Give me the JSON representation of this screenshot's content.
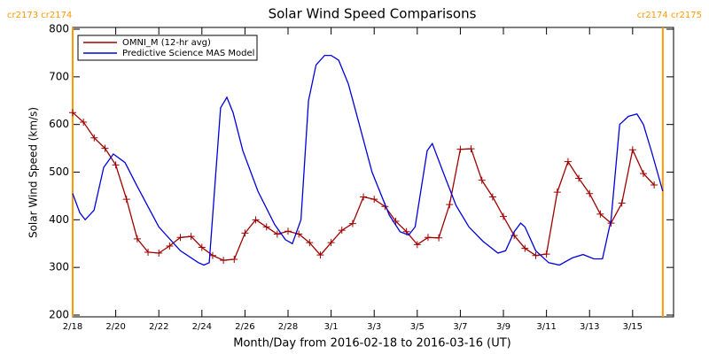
{
  "chart_data": {
    "type": "line",
    "title": "Solar Wind Speed Comparisons",
    "xlabel": "Month/Day from 2016-02-18 to 2016-03-16 (UT)",
    "ylabel": "Solar Wind Speed (km/s)",
    "xlim": [
      0,
      27.9
    ],
    "ylim": [
      200,
      800
    ],
    "yticks": [
      200,
      300,
      400,
      500,
      600,
      700,
      800
    ],
    "xticks": [
      {
        "value": 0,
        "label": "2/18"
      },
      {
        "value": 2,
        "label": "2/20"
      },
      {
        "value": 4,
        "label": "2/22"
      },
      {
        "value": 6,
        "label": "2/24"
      },
      {
        "value": 8,
        "label": "2/26"
      },
      {
        "value": 10,
        "label": "2/28"
      },
      {
        "value": 12,
        "label": "3/1"
      },
      {
        "value": 14,
        "label": "3/3"
      },
      {
        "value": 16,
        "label": "3/5"
      },
      {
        "value": 18,
        "label": "3/7"
      },
      {
        "value": 20,
        "label": "3/9"
      },
      {
        "value": 22,
        "label": "3/11"
      },
      {
        "value": 24,
        "label": "3/13"
      },
      {
        "value": 26,
        "label": "3/15"
      }
    ],
    "legend": "upper left",
    "markers": [
      {
        "x": 0,
        "label": "cr2173 cr2174",
        "color": "#ff9900"
      },
      {
        "x": 27.4,
        "label": "cr2174 cr2175",
        "color": "#ff9900"
      }
    ],
    "series": [
      {
        "name": "OMNI_M (12-hr avg)",
        "color": "#a00000",
        "marker": "+",
        "x": [
          0,
          0.5,
          1,
          1.5,
          2,
          2.5,
          3,
          3.5,
          4,
          4.5,
          5,
          5.5,
          6,
          6.5,
          7,
          7.5,
          8,
          8.5,
          9,
          9.5,
          10,
          10.5,
          11,
          11.5,
          12,
          12.5,
          13,
          13.5,
          14,
          14.5,
          15,
          15.5,
          16,
          16.5,
          17,
          17.5,
          18,
          18.5,
          19,
          19.5,
          20,
          20.5,
          21,
          21.5,
          22,
          22.5,
          23,
          23.5,
          24,
          24.5,
          25,
          25.5,
          26,
          26.5,
          27
        ],
        "values": [
          625,
          605,
          572,
          550,
          515,
          443,
          360,
          332,
          330,
          345,
          363,
          365,
          342,
          325,
          315,
          317,
          372,
          400,
          385,
          370,
          376,
          370,
          352,
          326,
          352,
          378,
          392,
          448,
          443,
          428,
          397,
          375,
          348,
          363,
          362,
          432,
          548,
          549,
          483,
          448,
          407,
          367,
          340,
          325,
          328,
          458,
          522,
          487,
          455,
          412,
          393,
          435,
          547,
          497,
          473
        ]
      },
      {
        "name": "Predictive Science MAS Model",
        "color": "#0000dd",
        "x": [
          0,
          0.33,
          0.58,
          0.99,
          1.44,
          1.89,
          2.43,
          3.0,
          4.0,
          5.0,
          5.84,
          6.09,
          6.34,
          6.87,
          7.16,
          7.45,
          7.9,
          8.6,
          9.38,
          9.88,
          10.2,
          10.6,
          10.95,
          11.3,
          11.7,
          12.0,
          12.35,
          12.8,
          13.25,
          13.9,
          14.7,
          15.2,
          15.6,
          15.9,
          16.46,
          16.7,
          17.2,
          17.8,
          18.4,
          19.05,
          19.75,
          20.1,
          20.5,
          20.8,
          21.0,
          21.5,
          22.1,
          22.6,
          23.2,
          23.7,
          24.2,
          24.6,
          25.0,
          25.4,
          25.8,
          26.2,
          26.5,
          26.9,
          27.4
        ],
        "values": [
          455,
          415,
          400,
          420,
          510,
          538,
          520,
          470,
          385,
          335,
          310,
          305,
          310,
          635,
          657,
          625,
          545,
          460,
          390,
          358,
          350,
          400,
          650,
          725,
          745,
          745,
          735,
          685,
          610,
          500,
          410,
          375,
          368,
          385,
          545,
          560,
          500,
          430,
          385,
          355,
          330,
          335,
          375,
          393,
          385,
          335,
          310,
          305,
          320,
          327,
          318,
          318,
          400,
          600,
          617,
          622,
          600,
          540,
          460
        ]
      }
    ]
  }
}
